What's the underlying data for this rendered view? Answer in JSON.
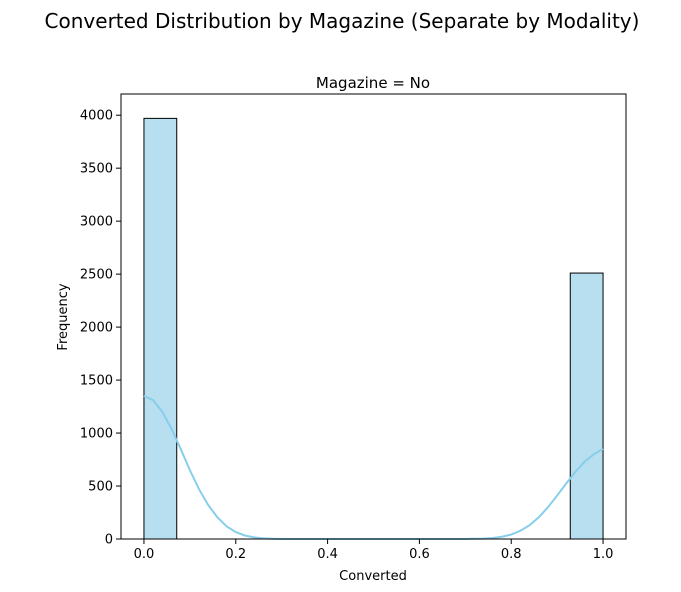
{
  "figure": {
    "suptitle": "Converted Distribution by Magazine (Separate by Modality)"
  },
  "chart_data": {
    "type": "bar",
    "subtitle": "Magazine = No",
    "title": "Converted Distribution by Magazine (Separate by Modality)",
    "xlabel": "Converted",
    "ylabel": "Frequency",
    "xlim": [
      -0.05,
      1.05
    ],
    "ylim": [
      0,
      4200
    ],
    "x_ticks": [
      0.0,
      0.2,
      0.4,
      0.6,
      0.8,
      1.0
    ],
    "x_tick_labels": [
      "0.0",
      "0.2",
      "0.4",
      "0.6",
      "0.8",
      "1.0"
    ],
    "y_ticks": [
      0,
      500,
      1000,
      1500,
      2000,
      2500,
      3000,
      3500,
      4000
    ],
    "y_tick_labels": [
      "0",
      "500",
      "1000",
      "1500",
      "2000",
      "2500",
      "3000",
      "3500",
      "4000"
    ],
    "bins": [
      {
        "x0": 0.0,
        "x1": 0.0714,
        "count": 3970
      },
      {
        "x0": 0.0714,
        "x1": 0.1429,
        "count": 0
      },
      {
        "x0": 0.1429,
        "x1": 0.2143,
        "count": 0
      },
      {
        "x0": 0.2143,
        "x1": 0.2857,
        "count": 0
      },
      {
        "x0": 0.2857,
        "x1": 0.3571,
        "count": 0
      },
      {
        "x0": 0.3571,
        "x1": 0.4286,
        "count": 0
      },
      {
        "x0": 0.4286,
        "x1": 0.5,
        "count": 0
      },
      {
        "x0": 0.5,
        "x1": 0.5714,
        "count": 0
      },
      {
        "x0": 0.5714,
        "x1": 0.6429,
        "count": 0
      },
      {
        "x0": 0.6429,
        "x1": 0.7143,
        "count": 0
      },
      {
        "x0": 0.7143,
        "x1": 0.7857,
        "count": 0
      },
      {
        "x0": 0.7857,
        "x1": 0.8571,
        "count": 0
      },
      {
        "x0": 0.8571,
        "x1": 0.9286,
        "count": 0
      },
      {
        "x0": 0.9286,
        "x1": 1.0,
        "count": 2510
      }
    ],
    "kde": {
      "x": [
        0.0,
        0.02,
        0.04,
        0.06,
        0.08,
        0.1,
        0.12,
        0.14,
        0.16,
        0.18,
        0.2,
        0.22,
        0.24,
        0.26,
        0.28,
        0.3,
        0.35,
        0.4,
        0.5,
        0.6,
        0.7,
        0.72,
        0.74,
        0.76,
        0.78,
        0.8,
        0.82,
        0.84,
        0.86,
        0.88,
        0.9,
        0.92,
        0.94,
        0.96,
        0.98,
        1.0
      ],
      "y": [
        1350,
        1310,
        1200,
        1040,
        850,
        650,
        470,
        320,
        205,
        120,
        65,
        33,
        15,
        6,
        2,
        0,
        0,
        0,
        0,
        0,
        0,
        2,
        4,
        10,
        21,
        42,
        78,
        130,
        205,
        300,
        410,
        525,
        635,
        730,
        800,
        850
      ]
    },
    "colors": {
      "bar_fill": "#b8dff0",
      "bar_edge": "#000000",
      "kde_line": "#87ceeb"
    },
    "grid": false,
    "legend": "none"
  }
}
